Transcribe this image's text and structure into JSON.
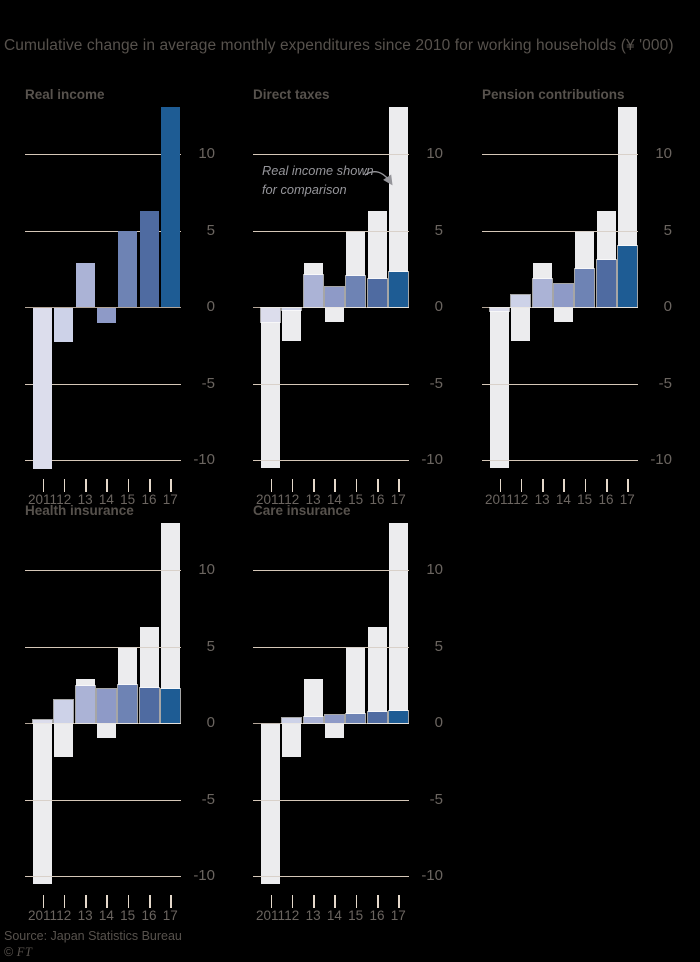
{
  "header": {
    "title": "Cumulative change in average monthly expenditures since 2010 for working households (¥ '000)"
  },
  "chart_data": {
    "type": "bar",
    "title": "Cumulative change in average monthly expenditures since 2010 for working households (¥ '000)",
    "categories": [
      "2011",
      "12",
      "13",
      "14",
      "15",
      "16",
      "17"
    ],
    "y_ticks": [
      10,
      5,
      0,
      -5,
      -10
    ],
    "ylim": [
      -10.6,
      13.5
    ],
    "grid": "horizontal",
    "legend_position": "none",
    "ghost_series": {
      "name": "Real income shown for comparison",
      "values": [
        -10.5,
        -2.2,
        2.9,
        -1.0,
        5.0,
        6.3,
        13.1
      ]
    },
    "panels": [
      {
        "label": "Real income",
        "ghost": false,
        "values": [
          -10.5,
          -2.2,
          2.9,
          -1.0,
          5.0,
          6.3,
          13.1
        ]
      },
      {
        "label": "Direct taxes",
        "ghost": true,
        "values": [
          -0.9,
          -0.1,
          2.1,
          1.3,
          2.0,
          1.8,
          2.3
        ]
      },
      {
        "label": "Pension contributions",
        "ghost": true,
        "values": [
          -0.2,
          0.8,
          1.8,
          1.5,
          2.5,
          3.1,
          4.0
        ]
      },
      {
        "label": "Health insurance",
        "ghost": true,
        "values": [
          0.2,
          1.5,
          2.4,
          2.2,
          2.5,
          2.3,
          2.2
        ]
      },
      {
        "label": "Care insurance",
        "ghost": true,
        "values": [
          0.0,
          0.3,
          0.4,
          0.5,
          0.6,
          0.7,
          0.8
        ]
      }
    ],
    "annotation": {
      "line1": "Real income shown",
      "line2": "for comparison"
    }
  },
  "colors": {
    "year_palette": [
      "#dcddec",
      "#cdd2e8",
      "#abb3d6",
      "#8e9ac7",
      "#6e83b4",
      "#4f6ba1",
      "#1e5c94"
    ],
    "ghost_bar": "#ececee",
    "gridline": "#e4d8ca",
    "zero_line": "#c5baae",
    "text_dark": "#57524d",
    "text_label": "#6b6560",
    "annotation": "#95959a",
    "background": "#000000"
  },
  "footer": {
    "source": "Source: Japan Statistics Bureau",
    "copyright_symbol": "©",
    "copyright_brand": "FT"
  }
}
